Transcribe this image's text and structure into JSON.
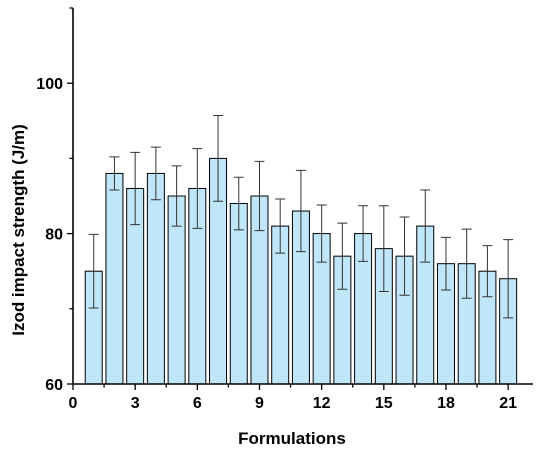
{
  "chart_data": {
    "type": "bar",
    "x": [
      1,
      2,
      3,
      4,
      5,
      6,
      7,
      8,
      9,
      10,
      11,
      12,
      13,
      14,
      15,
      16,
      17,
      18,
      19,
      20,
      21
    ],
    "values": [
      75,
      88,
      86,
      88,
      85,
      86,
      90,
      84,
      85,
      81,
      83,
      80,
      77,
      80,
      78,
      77,
      81,
      76,
      76,
      75,
      74
    ],
    "errors": [
      4.9,
      2.2,
      4.8,
      3.5,
      4.0,
      5.3,
      5.7,
      3.5,
      4.6,
      3.6,
      5.4,
      3.8,
      4.4,
      3.7,
      5.7,
      5.2,
      4.8,
      3.5,
      4.6,
      3.4,
      5.2
    ],
    "xlabel": "Formulations",
    "ylabel": "Izod impact strength (J/m)",
    "xlim": [
      0,
      22.2
    ],
    "ylim": [
      60,
      110
    ],
    "xticks": [
      0,
      3,
      6,
      9,
      12,
      15,
      18,
      21
    ],
    "yticks": [
      60,
      80,
      100
    ],
    "grid": false,
    "bar_color": "#bfe7f9"
  }
}
